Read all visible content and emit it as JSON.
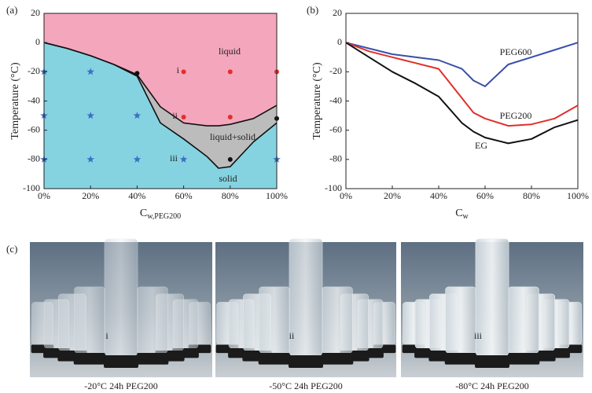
{
  "chart_data": [
    {
      "type": "phase",
      "panel": "(a)",
      "ylabel": "Temperature (°C)",
      "xlabel": {
        "main": "C",
        "sub": "w,PEG200"
      },
      "xlim": [
        0,
        100
      ],
      "ylim": [
        -100,
        20
      ],
      "xticks": [
        {
          "value": 0,
          "label": "0%"
        },
        {
          "value": 20,
          "label": "20%"
        },
        {
          "value": 40,
          "label": "40%"
        },
        {
          "value": 60,
          "label": "60%"
        },
        {
          "value": 80,
          "label": "80%"
        },
        {
          "value": 100,
          "label": "100%"
        }
      ],
      "yticks": [
        -100,
        -80,
        -60,
        -40,
        -20,
        0,
        20
      ],
      "x": [
        0,
        10,
        20,
        30,
        40,
        50,
        60,
        70,
        75,
        80,
        90,
        100
      ],
      "series": [
        {
          "color": "#111111",
          "values": [
            0,
            -4,
            -9,
            -15,
            -22,
            -44,
            -55,
            -57,
            -57,
            -56,
            -52,
            -43
          ]
        },
        {
          "color": "#111111",
          "values": [
            0,
            -4,
            -9,
            -15,
            -23,
            -55,
            -66,
            -78,
            -86,
            -85,
            -68,
            -55
          ]
        }
      ],
      "regions": [
        {
          "label": "liquid",
          "color": "#f4a6bd",
          "text_color": "#e0503c"
        },
        {
          "label": "liquid+solid",
          "color": "#bcbcbc",
          "text_color": "#222222"
        },
        {
          "label": "solid",
          "color": "#85d3e1",
          "text_color": "#4a6fc0"
        }
      ],
      "points": [
        {
          "marker": "star",
          "color": "#3d6fc2",
          "x": [
            0,
            20,
            0,
            20,
            40,
            0,
            20,
            40,
            60,
            100
          ],
          "values": [
            -20,
            -20,
            -50,
            -50,
            -50,
            -80,
            -80,
            -80,
            -80,
            -80
          ]
        },
        {
          "marker": "circle",
          "color": "#e0302a",
          "x": [
            60,
            80,
            100,
            60,
            80
          ],
          "values": [
            -20,
            -20,
            -20,
            -51,
            -51
          ]
        },
        {
          "marker": "circle",
          "color": "#111111",
          "x": [
            40,
            80,
            100
          ],
          "values": [
            -21,
            -80,
            -52
          ]
        }
      ],
      "point_labels": [
        "i",
        "ii",
        "iii"
      ]
    },
    {
      "type": "line",
      "panel": "(b)",
      "ylabel": "Temperature (°C)",
      "xlabel": {
        "main": "C",
        "sub": "w"
      },
      "xlim": [
        0,
        100
      ],
      "ylim": [
        -100,
        20
      ],
      "xticks": [
        {
          "value": 0,
          "label": "0%"
        },
        {
          "value": 20,
          "label": "20%"
        },
        {
          "value": 40,
          "label": "40%"
        },
        {
          "value": 60,
          "label": "60%"
        },
        {
          "value": 80,
          "label": "80%"
        },
        {
          "value": 100,
          "label": "100%"
        }
      ],
      "yticks": [
        -100,
        -80,
        -60,
        -40,
        -20,
        0,
        20
      ],
      "x": [
        0,
        10,
        20,
        30,
        40,
        50,
        55,
        60,
        70,
        80,
        90,
        100
      ],
      "series": [
        {
          "name": "PEG600",
          "color": "#3a4fa8",
          "values": [
            0,
            -4,
            -8,
            -10,
            -12,
            -18,
            -26,
            -30,
            -15,
            -10,
            -5,
            0
          ]
        },
        {
          "name": "PEG200",
          "color": "#e0302a",
          "values": [
            0,
            -6,
            -10,
            -14,
            -18,
            -38,
            -48,
            -52,
            -57,
            -56,
            -52,
            -43
          ]
        },
        {
          "name": "EG",
          "color": "#111111",
          "values": [
            0,
            -10,
            -20,
            -28,
            -37,
            -55,
            -61,
            -65,
            -69,
            -66,
            -58,
            -53
          ]
        }
      ]
    }
  ],
  "figure": {
    "panel": "(c)",
    "photos": [
      {
        "label": "i",
        "caption": "-20°C  24h  PEG200"
      },
      {
        "label": "ii",
        "caption": "-50°C  24h  PEG200"
      },
      {
        "label": "iii",
        "caption": "-80°C  24h  PEG200"
      }
    ]
  }
}
